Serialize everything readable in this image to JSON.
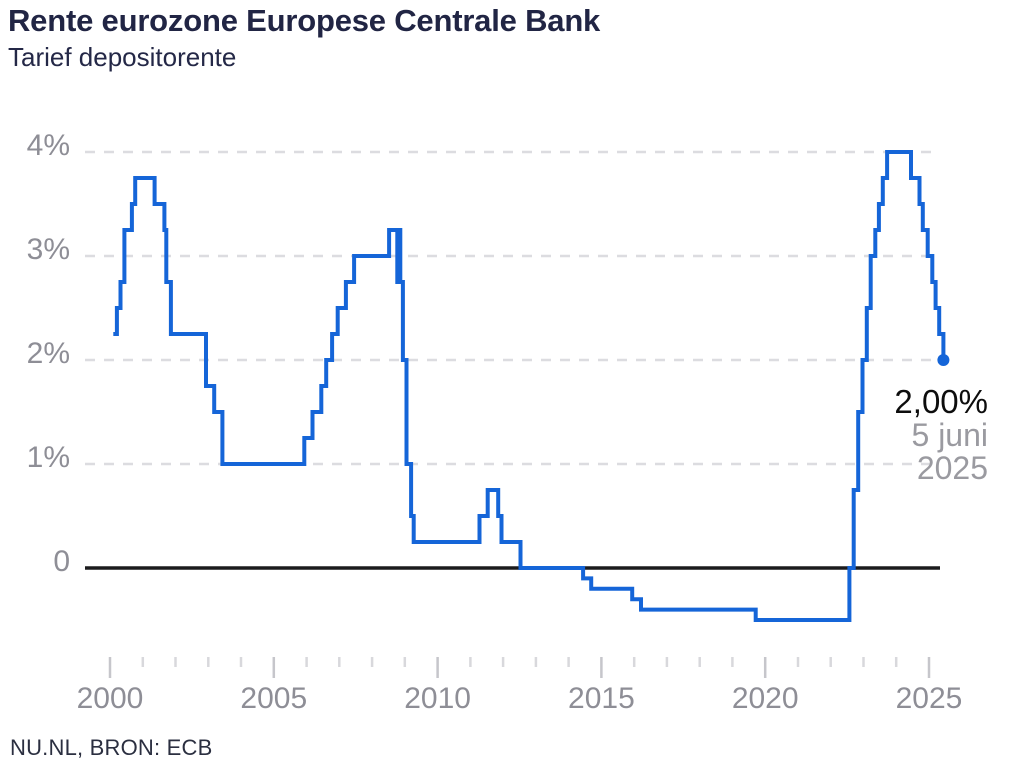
{
  "header": {
    "title": "Rente eurozone Europese Centrale Bank",
    "subtitle": "Tarief depositorente"
  },
  "footer": {
    "source": "NU.NL, BRON: ECB"
  },
  "annotation": {
    "value": "2,00%",
    "date_line1": "5 juni",
    "date_line2": "2025"
  },
  "colors": {
    "line": "#1565d8",
    "grid": "#dcdce0",
    "zero_line": "#1b1b1d",
    "label_gray": "#8e8e96",
    "tick_minor": "#d8d8dc",
    "tick_major": "#c6c6cb",
    "annotation_value": "#0d0d0d",
    "annotation_date": "#9a9aa0",
    "title_dark": "#212544"
  },
  "chart_data": {
    "type": "line",
    "style": "step-after",
    "title": "Rente eurozone Europese Centrale Bank",
    "subtitle": "Tarief depositorente",
    "xlabel": "",
    "ylabel": "",
    "grid": "horizontal dashed at 1%-4%, solid black axis at 0",
    "legend": "none",
    "x_axis": {
      "min": 2000,
      "max": 2025.8,
      "minor_tick_step": 1,
      "tick_start": 2000,
      "tick_end": 2025,
      "labeled_ticks": [
        {
          "value": 2000,
          "label": "2000"
        },
        {
          "value": 2005,
          "label": "2005"
        },
        {
          "value": 2010,
          "label": "2010"
        },
        {
          "value": 2015,
          "label": "2015"
        },
        {
          "value": 2020,
          "label": "2020"
        },
        {
          "value": 2025,
          "label": "2025"
        }
      ]
    },
    "y_axis": {
      "min": -0.5,
      "max": 4,
      "unit": "%",
      "ticks": [
        {
          "value": 4,
          "label": "4%"
        },
        {
          "value": 3,
          "label": "3%"
        },
        {
          "value": 2,
          "label": "2%"
        },
        {
          "value": 1,
          "label": "1%"
        },
        {
          "value": 0,
          "label": "0"
        }
      ]
    },
    "series": [
      {
        "name": "Tarief depositorente",
        "color": "#1565d8",
        "points": [
          [
            2000.1,
            2.25
          ],
          [
            2000.21,
            2.5
          ],
          [
            2000.32,
            2.75
          ],
          [
            2000.44,
            3.25
          ],
          [
            2000.67,
            3.5
          ],
          [
            2000.77,
            3.75
          ],
          [
            2001.36,
            3.5
          ],
          [
            2001.66,
            3.25
          ],
          [
            2001.72,
            2.75
          ],
          [
            2001.86,
            2.25
          ],
          [
            2002.93,
            1.75
          ],
          [
            2003.18,
            1.5
          ],
          [
            2003.43,
            1.0
          ],
          [
            2005.93,
            1.25
          ],
          [
            2006.18,
            1.5
          ],
          [
            2006.45,
            1.75
          ],
          [
            2006.6,
            2.0
          ],
          [
            2006.78,
            2.25
          ],
          [
            2006.95,
            2.5
          ],
          [
            2007.2,
            2.75
          ],
          [
            2007.45,
            3.0
          ],
          [
            2008.52,
            3.25
          ],
          [
            2008.77,
            2.75
          ],
          [
            2008.79,
            3.25
          ],
          [
            2008.86,
            2.75
          ],
          [
            2008.94,
            2.0
          ],
          [
            2009.05,
            1.0
          ],
          [
            2009.19,
            0.5
          ],
          [
            2009.27,
            0.25
          ],
          [
            2011.28,
            0.5
          ],
          [
            2011.53,
            0.75
          ],
          [
            2011.85,
            0.5
          ],
          [
            2011.95,
            0.25
          ],
          [
            2012.53,
            0.0
          ],
          [
            2014.44,
            -0.1
          ],
          [
            2014.69,
            -0.2
          ],
          [
            2015.94,
            -0.3
          ],
          [
            2016.21,
            -0.4
          ],
          [
            2019.71,
            -0.5
          ],
          [
            2022.57,
            0.0
          ],
          [
            2022.7,
            0.75
          ],
          [
            2022.84,
            1.5
          ],
          [
            2022.97,
            2.0
          ],
          [
            2023.1,
            2.5
          ],
          [
            2023.22,
            3.0
          ],
          [
            2023.36,
            3.25
          ],
          [
            2023.47,
            3.5
          ],
          [
            2023.59,
            3.75
          ],
          [
            2023.72,
            4.0
          ],
          [
            2024.45,
            3.75
          ],
          [
            2024.71,
            3.5
          ],
          [
            2024.81,
            3.25
          ],
          [
            2024.96,
            3.0
          ],
          [
            2025.1,
            2.75
          ],
          [
            2025.2,
            2.5
          ],
          [
            2025.31,
            2.25
          ],
          [
            2025.44,
            2.0
          ]
        ]
      }
    ],
    "end_marker": {
      "x": 2025.44,
      "y": 2.0,
      "label": "2,00% — 5 juni 2025"
    }
  }
}
